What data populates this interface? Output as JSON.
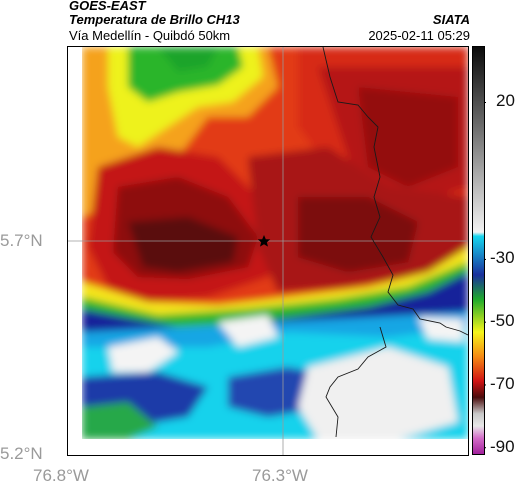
{
  "header": {
    "satellite": "GOES-EAST",
    "product": "Temperatura de Brillo CH13",
    "route": "Vía Medellín - Quibdó 50km",
    "org": "SIATA",
    "datetime": "2025-02-11 05:29"
  },
  "axes": {
    "lat_ticks": [
      {
        "label": "5.7°N",
        "value": 5.7
      },
      {
        "label": "5.2°N",
        "value": 5.2
      }
    ],
    "lon_ticks": [
      {
        "label": "76.8°W",
        "value": -76.8
      },
      {
        "label": "76.3°W",
        "value": -76.3
      }
    ]
  },
  "colorbar": {
    "ticks": [
      {
        "label": "20",
        "value": 20
      },
      {
        "label": "-30",
        "value": -30
      },
      {
        "label": "-50",
        "value": -50
      },
      {
        "label": "-70",
        "value": -70
      },
      {
        "label": "-90",
        "value": -90
      }
    ],
    "range": [
      -92,
      38
    ],
    "colors": {
      "warm_top": "#0a0a0a",
      "grey_mid": "#8a8a8a",
      "light": "#f2f2f2",
      "blue": "#1a2f9c",
      "cyan": "#16d6ee",
      "green": "#1faa2c",
      "yellow": "#f5f51a",
      "orange": "#f58a14",
      "red": "#d11414",
      "darkred": "#4a0c0c",
      "magenta": "#a01f9a"
    }
  },
  "map": {
    "marker": "star-icon",
    "colors": {
      "cloud_darkred": "#8e0d0d",
      "cloud_red": "#c41515",
      "orange": "#f28a1b",
      "yellow": "#eef21c",
      "green": "#25b52c",
      "blue": "#16249a",
      "cyan": "#19d2ec",
      "white": "#f4f4f4",
      "border": "#1a1a1a"
    }
  }
}
